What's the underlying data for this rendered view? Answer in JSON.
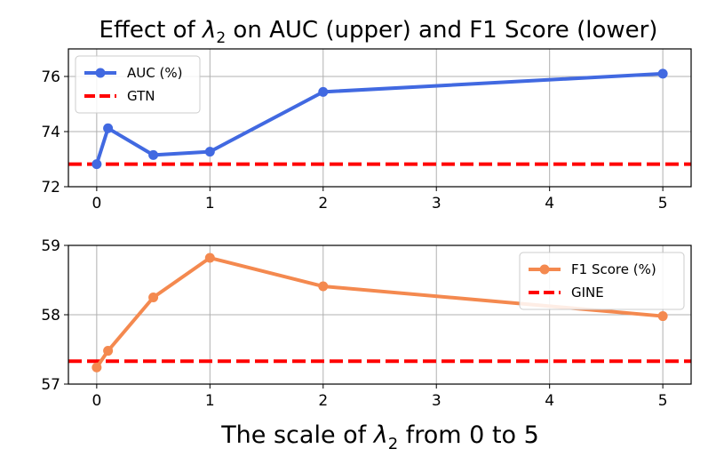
{
  "figure": {
    "title": "Effect of λ2 on AUC (upper) and F1 Score (lower)",
    "xlabel": "The scale of λ2 from 0 to 5"
  },
  "chart_data": [
    {
      "type": "line",
      "panel": "upper",
      "x": [
        0,
        0.1,
        0.5,
        1,
        2,
        5
      ],
      "xlim": [
        -0.25,
        5.25
      ],
      "ylim": [
        72,
        77
      ],
      "xticks": [
        0,
        1,
        2,
        3,
        4,
        5
      ],
      "yticks": [
        72,
        74,
        76
      ],
      "grid": true,
      "legend_position": "top-left",
      "series": [
        {
          "name": "AUC (%)",
          "values": [
            72.82,
            74.12,
            73.15,
            73.27,
            75.44,
            76.1
          ],
          "color": "#4169e1",
          "style": "solid-marker"
        }
      ],
      "baselines": [
        {
          "name": "GTN",
          "value": 72.82,
          "color": "#ff0000",
          "style": "dashed"
        }
      ]
    },
    {
      "type": "line",
      "panel": "lower",
      "x": [
        0,
        0.1,
        0.5,
        1,
        2,
        5
      ],
      "xlim": [
        -0.25,
        5.25
      ],
      "ylim": [
        57,
        59
      ],
      "xticks": [
        0,
        1,
        2,
        3,
        4,
        5
      ],
      "yticks": [
        57,
        58,
        59
      ],
      "grid": true,
      "legend_position": "top-right",
      "series": [
        {
          "name": "F1 Score (%)",
          "values": [
            57.24,
            57.48,
            58.25,
            58.82,
            58.41,
            57.98
          ],
          "color": "#f4894f",
          "style": "solid-marker"
        }
      ],
      "baselines": [
        {
          "name": "GINE",
          "value": 57.33,
          "color": "#ff0000",
          "style": "dashed"
        }
      ]
    }
  ]
}
